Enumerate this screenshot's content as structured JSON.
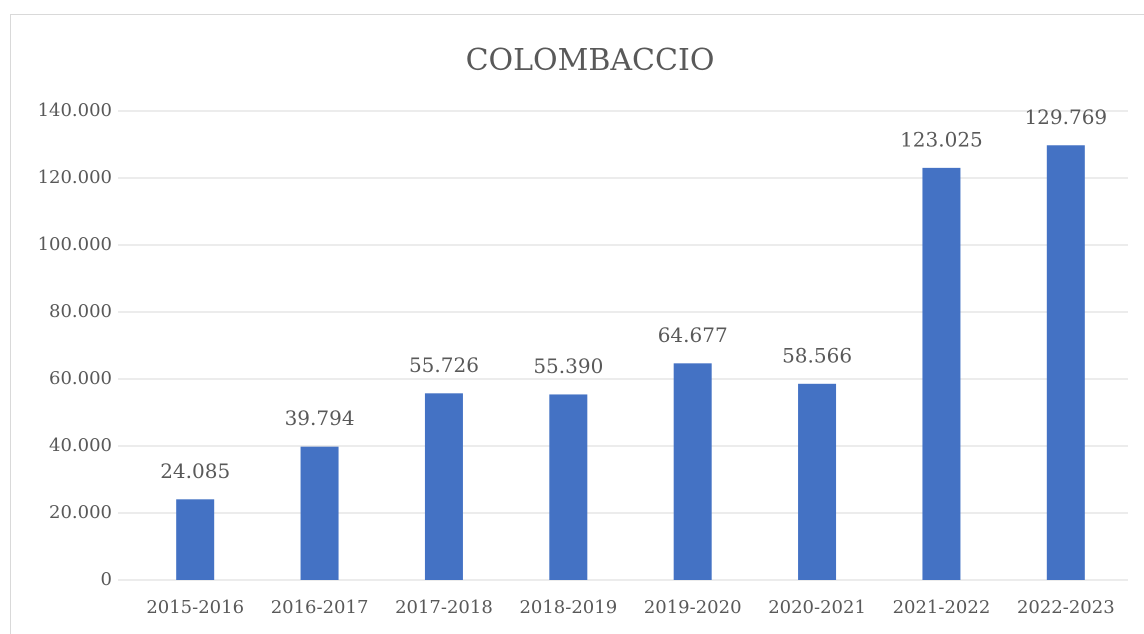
{
  "chart_data": {
    "type": "bar",
    "title": "COLOMBACCIO",
    "categories": [
      "2015-2016",
      "2016-2017",
      "2017-2018",
      "2018-2019",
      "2019-2020",
      "2020-2021",
      "2021-2022",
      "2022-2023"
    ],
    "values": [
      24085,
      39794,
      55726,
      55390,
      64677,
      58566,
      123025,
      129769
    ],
    "value_labels": [
      "24.085",
      "39.794",
      "55.726",
      "55.390",
      "64.677",
      "58.566",
      "123.025",
      "129.769"
    ],
    "color": "#4472c4",
    "ylim": [
      0,
      140000
    ],
    "yticks": [
      0,
      {
        "value": 20000,
        "label": "20.000"
      },
      {
        "value": 40000,
        "label": "40.000"
      },
      {
        "value": 60000,
        "label": "60.000"
      },
      {
        "value": 80000,
        "label": "80.000"
      },
      {
        "value": 100000,
        "label": "100.000"
      },
      {
        "value": 120000,
        "label": "120.000"
      },
      {
        "value": 140000,
        "label": "140.000"
      }
    ],
    "grid": true
  }
}
